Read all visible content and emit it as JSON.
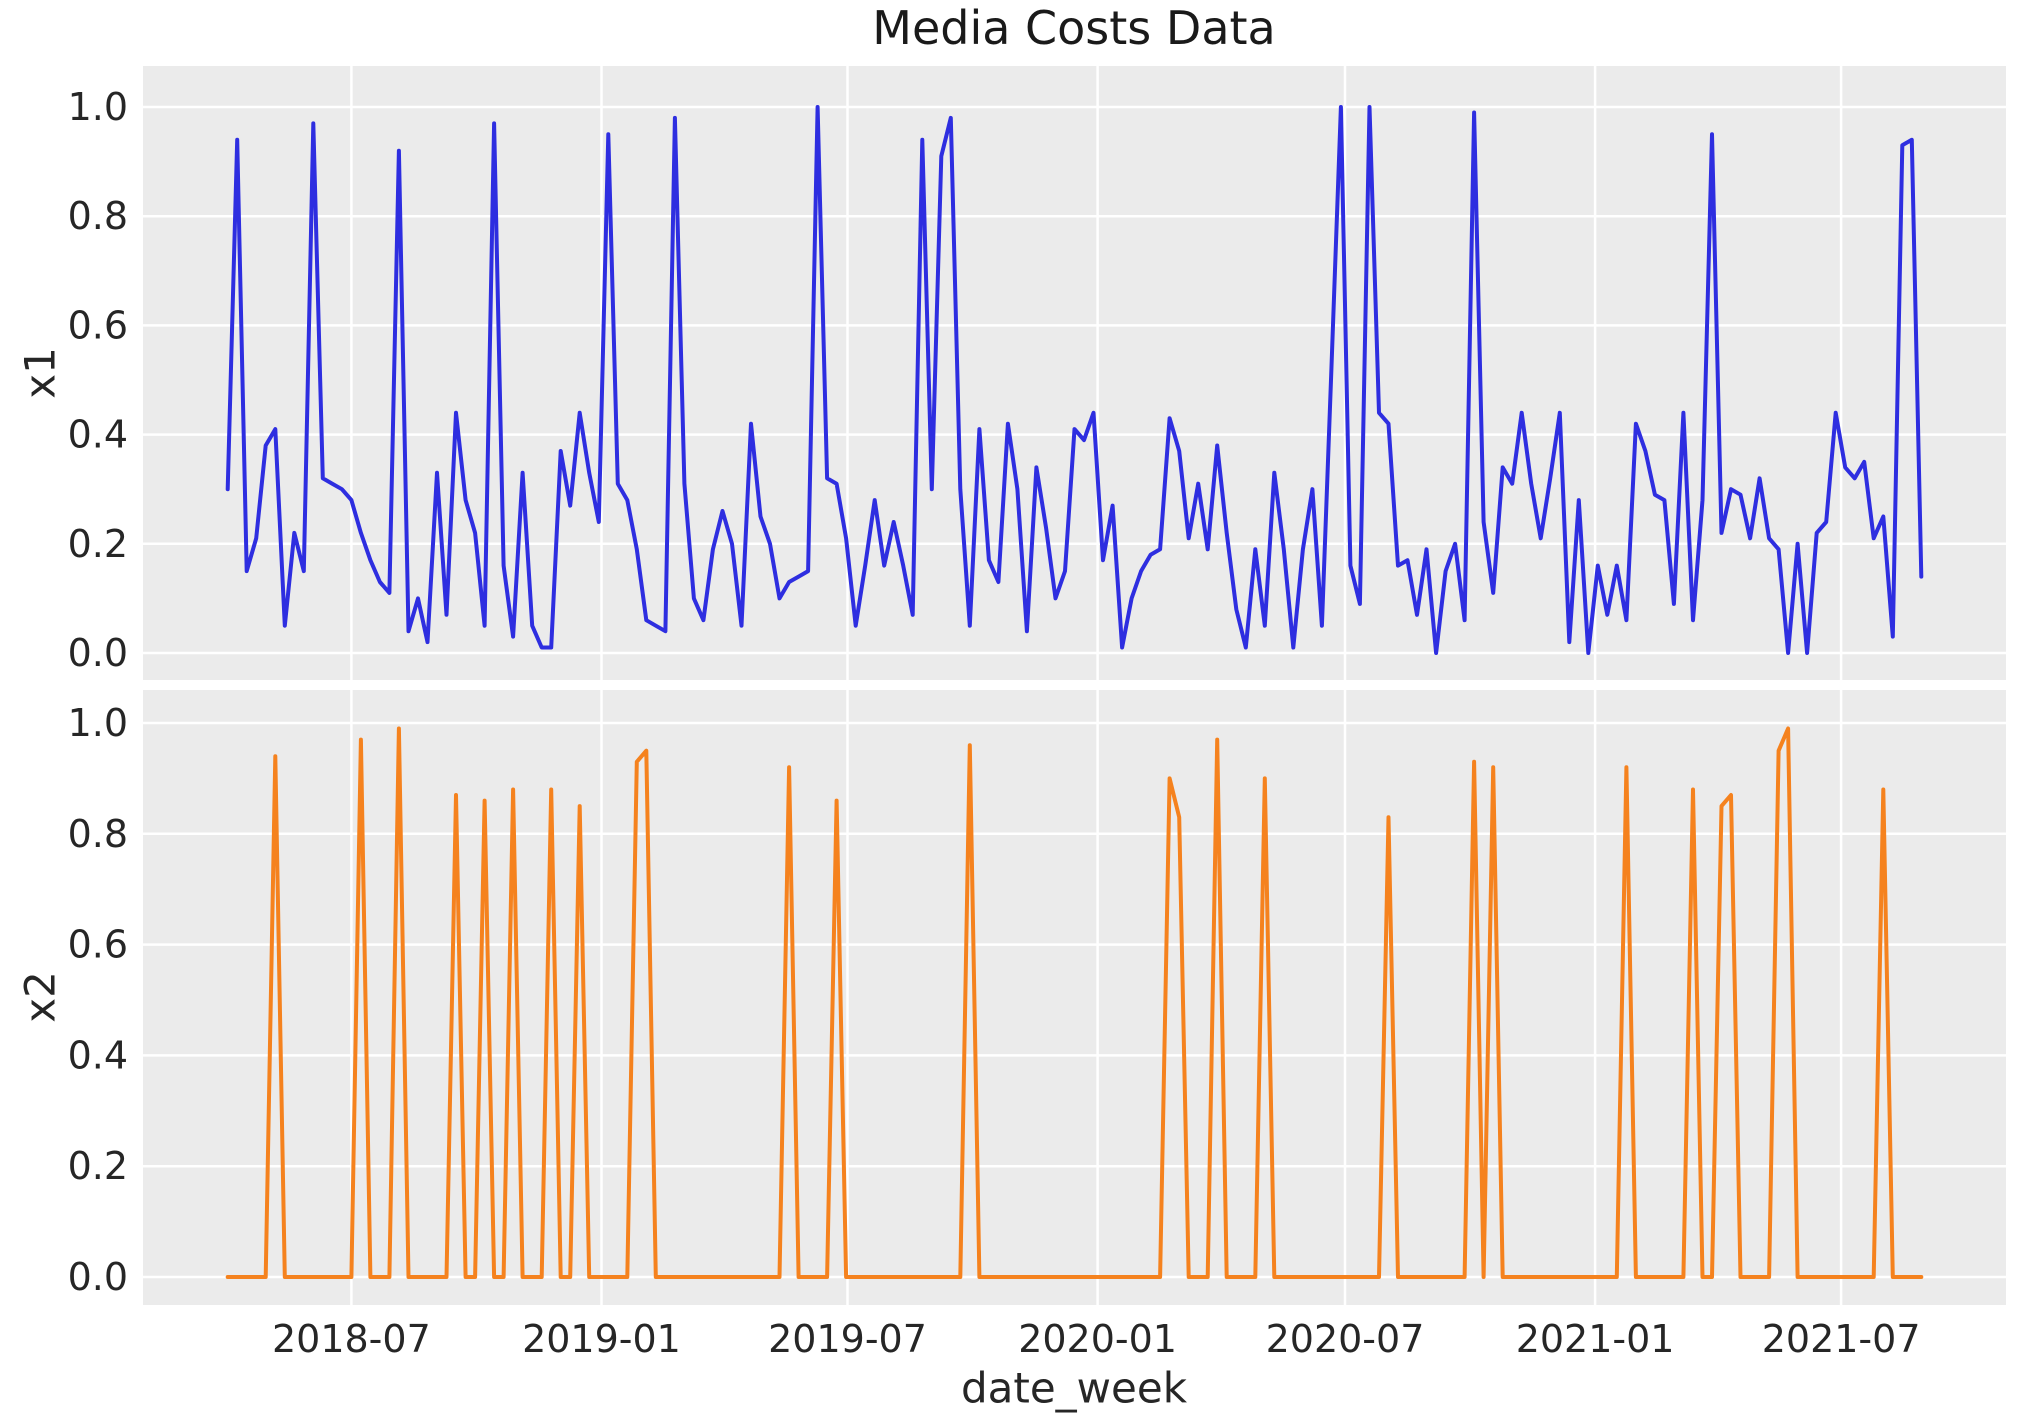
{
  "chart_data": {
    "type": "line",
    "title": "Media Costs Data",
    "xlabel": "date_week",
    "x_start_date": "2018-04-01",
    "x_freq_days": 7,
    "n_points": 179,
    "x_tick_labels": [
      "2018-07",
      "2019-01",
      "2019-07",
      "2020-01",
      "2020-07",
      "2021-01",
      "2021-07"
    ],
    "y_tick_labels": [
      "0.0",
      "0.2",
      "0.4",
      "0.6",
      "0.8",
      "1.0"
    ],
    "y_ticks": [
      0.0,
      0.2,
      0.4,
      0.6,
      0.8,
      1.0
    ],
    "ylim": [
      -0.05,
      1.05
    ],
    "grid": true,
    "legend": "none",
    "styles": {
      "axes_background": "#ebebeb",
      "grid_color": "#ffffff",
      "figure_background": "#ffffff",
      "tick_label_color": "#262626",
      "title_color": "#1a1a1a",
      "line_width": 4
    },
    "subplots": [
      {
        "ylabel": "x1",
        "color": "#2e2ee0",
        "values": [
          0.3,
          0.94,
          0.15,
          0.21,
          0.38,
          0.41,
          0.05,
          0.22,
          0.15,
          0.97,
          0.32,
          0.31,
          0.3,
          0.28,
          0.22,
          0.17,
          0.13,
          0.11,
          0.92,
          0.04,
          0.1,
          0.02,
          0.33,
          0.07,
          0.44,
          0.28,
          0.22,
          0.05,
          0.97,
          0.16,
          0.03,
          0.33,
          0.05,
          0.01,
          0.01,
          0.37,
          0.27,
          0.44,
          0.33,
          0.24,
          0.95,
          0.31,
          0.28,
          0.19,
          0.06,
          0.05,
          0.04,
          0.98,
          0.31,
          0.1,
          0.06,
          0.19,
          0.26,
          0.2,
          0.05,
          0.42,
          0.25,
          0.2,
          0.1,
          0.13,
          0.14,
          0.15,
          1.0,
          0.32,
          0.31,
          0.21,
          0.05,
          0.16,
          0.28,
          0.16,
          0.24,
          0.16,
          0.07,
          0.94,
          0.3,
          0.91,
          0.98,
          0.3,
          0.05,
          0.41,
          0.17,
          0.13,
          0.42,
          0.3,
          0.04,
          0.34,
          0.23,
          0.1,
          0.15,
          0.41,
          0.39,
          0.44,
          0.17,
          0.27,
          0.01,
          0.1,
          0.15,
          0.18,
          0.19,
          0.43,
          0.37,
          0.21,
          0.31,
          0.19,
          0.38,
          0.22,
          0.08,
          0.01,
          0.19,
          0.05,
          0.33,
          0.19,
          0.01,
          0.19,
          0.3,
          0.05,
          0.52,
          1.0,
          0.16,
          0.09,
          1.0,
          0.44,
          0.42,
          0.16,
          0.17,
          0.07,
          0.19,
          0.0,
          0.15,
          0.2,
          0.06,
          0.99,
          0.24,
          0.11,
          0.34,
          0.31,
          0.44,
          0.31,
          0.21,
          0.32,
          0.44,
          0.02,
          0.28,
          0.0,
          0.16,
          0.07,
          0.16,
          0.06,
          0.42,
          0.37,
          0.29,
          0.28,
          0.09,
          0.44,
          0.06,
          0.28,
          0.95,
          0.22,
          0.3,
          0.29,
          0.21,
          0.32,
          0.21,
          0.19,
          0.0,
          0.2,
          0.0,
          0.22,
          0.24,
          0.44,
          0.34,
          0.32,
          0.35,
          0.21,
          0.25,
          0.03,
          0.93,
          0.94,
          0.14
        ]
      },
      {
        "ylabel": "x2",
        "color": "#f5821e",
        "values": [
          0,
          0,
          0,
          0,
          0,
          0.94,
          0,
          0,
          0,
          0,
          0,
          0,
          0,
          0,
          0.97,
          0,
          0,
          0,
          0.99,
          0,
          0,
          0,
          0,
          0,
          0.87,
          0,
          0,
          0.86,
          0,
          0,
          0.88,
          0,
          0,
          0,
          0.88,
          0,
          0,
          0.85,
          0,
          0,
          0,
          0,
          0,
          0.93,
          0.95,
          0,
          0,
          0,
          0,
          0,
          0,
          0,
          0,
          0,
          0,
          0,
          0,
          0,
          0,
          0.92,
          0,
          0,
          0,
          0,
          0.86,
          0,
          0,
          0,
          0,
          0,
          0,
          0,
          0,
          0,
          0,
          0,
          0,
          0,
          0.96,
          0,
          0,
          0,
          0,
          0,
          0,
          0,
          0,
          0,
          0,
          0,
          0,
          0,
          0,
          0,
          0,
          0,
          0,
          0,
          0,
          0.9,
          0.83,
          0,
          0,
          0,
          0.97,
          0,
          0,
          0,
          0,
          0.9,
          0,
          0,
          0,
          0,
          0,
          0,
          0,
          0,
          0,
          0,
          0,
          0,
          0.83,
          0,
          0,
          0,
          0,
          0,
          0,
          0,
          0,
          0.93,
          0,
          0.92,
          0,
          0,
          0,
          0,
          0,
          0,
          0,
          0,
          0,
          0,
          0,
          0,
          0,
          0.92,
          0,
          0,
          0,
          0,
          0,
          0,
          0.88,
          0,
          0,
          0.85,
          0.87,
          0,
          0,
          0,
          0,
          0.95,
          0.99,
          0,
          0,
          0,
          0,
          0,
          0,
          0,
          0,
          0,
          0.88,
          0,
          0,
          0,
          0
        ]
      }
    ]
  }
}
